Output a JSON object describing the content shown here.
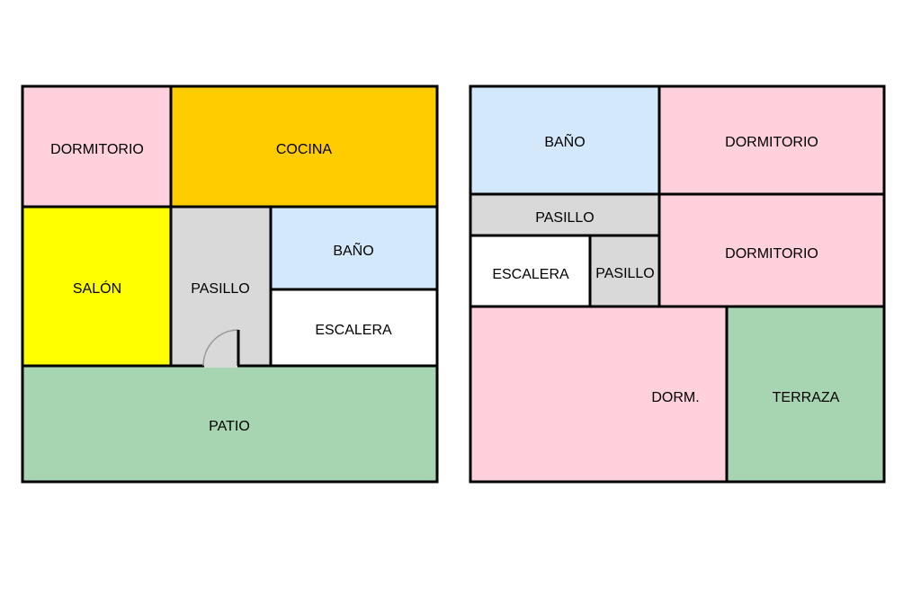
{
  "colors": {
    "dormitorio": "#ffd1dc",
    "cocina": "#ffcc00",
    "salon": "#ffff00",
    "pasillo": "#d9d9d9",
    "bano": "#d4e8fb",
    "escalera": "#ffffff",
    "exterior": "#a7d5b2"
  },
  "ground_floor": {
    "dormitorio": "DORMITORIO",
    "cocina": "COCINA",
    "salon": "SALÓN",
    "pasillo": "PASILLO",
    "bano": "BAÑO",
    "escalera": "ESCALERA",
    "patio": "PATIO"
  },
  "upper_floor": {
    "bano": "BAÑO",
    "dormitorio_1": "DORMITORIO",
    "pasillo_1": "PASILLO",
    "escalera": "ESCALERA",
    "pasillo_2": "PASILLO",
    "dormitorio_2": "DORMITORIO",
    "dorm": "DORM.",
    "terraza": "TERRAZA"
  }
}
